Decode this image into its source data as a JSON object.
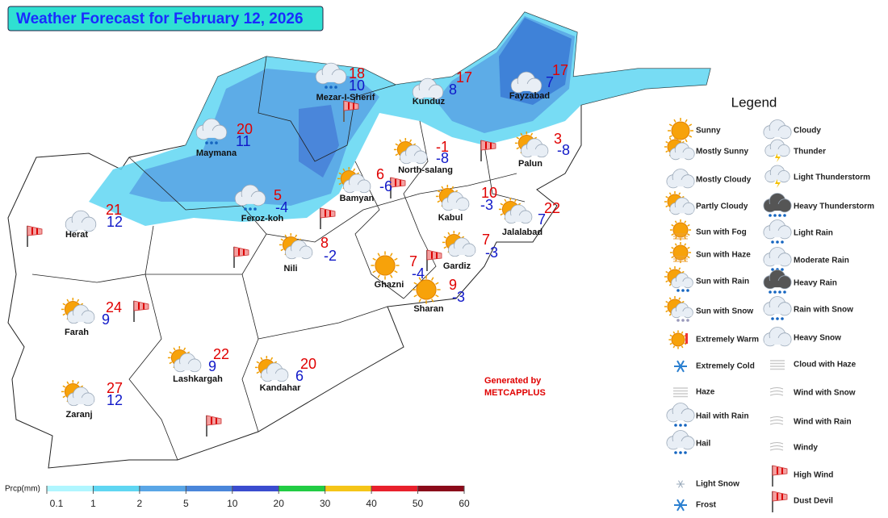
{
  "title": "Weather Forecast for February 12, 2026",
  "cities": [
    {
      "name": "Mezar-I-Sherif",
      "max": 18,
      "min": 10
    },
    {
      "name": "Kunduz",
      "max": 17,
      "min": 8
    },
    {
      "name": "Fayzabad",
      "max": 17,
      "min": 7
    },
    {
      "name": "Maymana",
      "max": 20,
      "min": 11
    },
    {
      "name": "North-salang",
      "max": -1,
      "min": -8
    },
    {
      "name": "Palun",
      "max": 3,
      "min": -8
    },
    {
      "name": "Bamyan",
      "max": 6,
      "min": -6
    },
    {
      "name": "Feroz-koh",
      "max": 5,
      "min": -4
    },
    {
      "name": "Kabul",
      "max": 10,
      "min": -3
    },
    {
      "name": "Jalalabad",
      "max": 22,
      "min": 7
    },
    {
      "name": "Herat",
      "max": 21,
      "min": 12
    },
    {
      "name": "Nili",
      "max": 8,
      "min": -2
    },
    {
      "name": "Gardiz",
      "max": 7,
      "min": -3
    },
    {
      "name": "Ghazni",
      "max": 7,
      "min": -4
    },
    {
      "name": "Sharan",
      "max": 9,
      "min": -3
    },
    {
      "name": "Farah",
      "max": 24,
      "min": 9
    },
    {
      "name": "Lashkargah",
      "max": 22,
      "min": 9
    },
    {
      "name": "Kandahar",
      "max": 20,
      "min": 6
    },
    {
      "name": "Zaranj",
      "max": 27,
      "min": 12
    }
  ],
  "credit": {
    "line1": "Generated by",
    "line2": "METCAPPLUS"
  },
  "legend": {
    "title": "Legend",
    "left": [
      "Sunny",
      "Mostly Sunny",
      "Mostly Cloudy",
      "Partly Cloudy",
      "Sun with Fog",
      "Sun with Haze",
      "Sun with Rain",
      "Sun with Snow",
      "Extremely Warm",
      "Extremely Cold",
      "Haze",
      "Hail with Rain",
      "Hail",
      "Light Snow",
      "Frost"
    ],
    "right": [
      "Cloudy",
      "Thunder",
      "Light Thunderstorm",
      "Heavy Thunderstorm",
      "Light Rain",
      "Moderate Rain",
      "Heavy Rain",
      "Rain with Snow",
      "Heavy Snow",
      "Cloud with Haze",
      "Wind with Snow",
      "Wind with Rain",
      "Windy",
      "High Wind",
      "Dust Devil"
    ]
  },
  "precip_scale": {
    "label": "Prcp(mm)",
    "ticks": [
      0.1,
      1,
      2,
      5,
      10,
      20,
      30,
      40,
      50,
      60
    ],
    "colors": [
      "#b0f6ff",
      "#5fd6f2",
      "#5aa6e6",
      "#4a86da",
      "#3a4ccf",
      "#22cc44",
      "#f5c518",
      "#e8202c",
      "#8b0a1a"
    ]
  }
}
